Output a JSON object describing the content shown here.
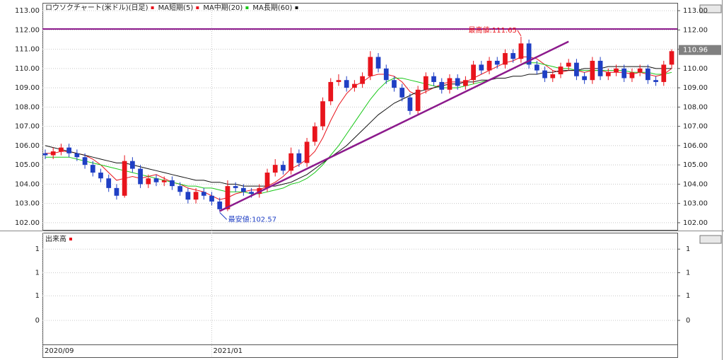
{
  "chart_data": {
    "type": "candlestick",
    "title": "ロウソクチャート(米ドル)(日足)",
    "up_color": "#e8141c",
    "down_color": "#1f3fc4",
    "grid": true,
    "categories": [
      "2020/09",
      null,
      null,
      null,
      null,
      null,
      null,
      null,
      null,
      null,
      null,
      null,
      null,
      null,
      null,
      null,
      null,
      null,
      null,
      null,
      null,
      "2021/01",
      null,
      null,
      null,
      null,
      null,
      null,
      null,
      null,
      null,
      null,
      null,
      null,
      null,
      null,
      null,
      null,
      null,
      null,
      null,
      null,
      null,
      null,
      null,
      null,
      null,
      null,
      null,
      null,
      null,
      null,
      null,
      null,
      null,
      null,
      null,
      null,
      null,
      null,
      null,
      null,
      null,
      null,
      null,
      null,
      null,
      null,
      null,
      null,
      null,
      null,
      null,
      null,
      null,
      null,
      null,
      null,
      null,
      null
    ],
    "open": [
      105.6,
      105.5,
      105.7,
      105.9,
      105.6,
      105.4,
      105.0,
      104.6,
      104.3,
      103.8,
      103.4,
      105.2,
      104.8,
      104.0,
      104.3,
      104.1,
      104.2,
      103.9,
      103.6,
      103.2,
      103.6,
      103.4,
      103.1,
      102.7,
      103.9,
      103.8,
      103.6,
      103.5,
      103.8,
      104.6,
      105.0,
      104.7,
      105.6,
      105.1,
      106.2,
      107.0,
      108.3,
      109.3,
      109.4,
      109.0,
      109.2,
      109.6,
      110.6,
      110.0,
      109.4,
      109.0,
      108.5,
      107.8,
      108.9,
      109.6,
      109.3,
      108.9,
      109.5,
      109.1,
      109.4,
      110.2,
      109.9,
      110.4,
      110.2,
      110.8,
      110.5,
      111.3,
      110.2,
      109.9,
      109.5,
      109.7,
      110.1,
      110.3,
      109.6,
      109.4,
      110.4,
      109.6,
      109.8,
      110.0,
      109.5,
      109.8,
      110.0,
      109.4,
      109.3,
      110.2
    ],
    "high": [
      105.8,
      105.9,
      106.1,
      106.1,
      105.8,
      105.6,
      105.2,
      104.8,
      104.5,
      104.0,
      105.5,
      105.4,
      105.0,
      104.5,
      104.5,
      104.4,
      104.4,
      104.1,
      103.8,
      103.8,
      103.8,
      103.6,
      103.3,
      104.2,
      104.1,
      104.0,
      103.8,
      104.0,
      104.8,
      105.3,
      105.2,
      105.9,
      105.8,
      106.4,
      107.2,
      108.5,
      109.5,
      109.7,
      109.6,
      109.4,
      109.8,
      110.9,
      110.8,
      110.2,
      109.6,
      109.2,
      108.7,
      109.1,
      109.8,
      109.8,
      109.5,
      109.7,
      109.7,
      109.6,
      110.4,
      110.4,
      110.6,
      110.6,
      111.0,
      111.0,
      111.65,
      111.5,
      110.4,
      110.1,
      109.9,
      110.3,
      110.5,
      110.5,
      109.8,
      110.6,
      110.6,
      110.0,
      110.2,
      110.2,
      110.0,
      110.2,
      110.2,
      109.6,
      110.4,
      111.0
    ],
    "low": [
      105.3,
      105.3,
      105.5,
      105.4,
      105.2,
      104.8,
      104.4,
      104.1,
      103.6,
      103.2,
      103.3,
      104.6,
      103.8,
      103.8,
      103.9,
      103.9,
      103.7,
      103.4,
      103.0,
      103.0,
      103.2,
      102.9,
      102.57,
      102.6,
      103.6,
      103.4,
      103.3,
      103.3,
      103.6,
      104.4,
      104.5,
      104.5,
      104.9,
      104.9,
      106.0,
      106.8,
      108.1,
      109.1,
      108.8,
      108.8,
      109.0,
      109.4,
      109.8,
      109.2,
      108.8,
      108.3,
      107.6,
      107.6,
      108.7,
      109.1,
      108.7,
      108.7,
      108.9,
      108.9,
      109.2,
      109.7,
      109.7,
      110.0,
      110.0,
      110.3,
      110.3,
      110.0,
      109.7,
      109.3,
      109.3,
      109.5,
      109.9,
      109.4,
      109.2,
      109.2,
      109.4,
      109.4,
      109.6,
      109.3,
      109.3,
      109.6,
      109.2,
      109.1,
      109.1,
      110.0
    ],
    "close": [
      105.5,
      105.7,
      105.9,
      105.6,
      105.4,
      105.0,
      104.6,
      104.3,
      103.8,
      103.4,
      105.2,
      104.8,
      104.0,
      104.3,
      104.1,
      104.2,
      103.9,
      103.6,
      103.2,
      103.6,
      103.4,
      103.1,
      102.7,
      103.9,
      103.8,
      103.6,
      103.5,
      103.8,
      104.6,
      105.0,
      104.7,
      105.6,
      105.1,
      106.2,
      107.0,
      108.3,
      109.3,
      109.4,
      109.0,
      109.2,
      109.6,
      110.6,
      110.0,
      109.4,
      109.0,
      108.5,
      107.8,
      108.9,
      109.6,
      109.3,
      108.9,
      109.5,
      109.1,
      109.4,
      110.2,
      109.9,
      110.4,
      110.2,
      110.8,
      110.5,
      111.3,
      110.2,
      109.9,
      109.5,
      109.7,
      110.1,
      110.3,
      109.6,
      109.4,
      110.4,
      109.6,
      109.8,
      110.0,
      109.5,
      109.8,
      110.0,
      109.4,
      109.3,
      110.2,
      110.9
    ],
    "series": [
      {
        "name": "MA短期(5)",
        "color": "#e8141c",
        "values": [
          105.6,
          105.6,
          105.7,
          105.7,
          105.6,
          105.5,
          105.3,
          105.0,
          104.6,
          104.2,
          104.3,
          104.4,
          104.3,
          104.4,
          104.5,
          104.3,
          104.1,
          104.0,
          103.8,
          103.7,
          103.6,
          103.4,
          103.2,
          103.3,
          103.5,
          103.6,
          103.7,
          103.7,
          103.9,
          104.1,
          104.4,
          104.8,
          105.0,
          105.3,
          105.7,
          106.4,
          107.3,
          108.1,
          108.7,
          109.1,
          109.3,
          109.6,
          109.7,
          109.7,
          109.6,
          109.3,
          108.8,
          108.6,
          108.8,
          109.0,
          109.2,
          109.3,
          109.3,
          109.3,
          109.5,
          109.7,
          109.9,
          110.1,
          110.3,
          110.4,
          110.6,
          110.6,
          110.5,
          110.2,
          109.9,
          109.8,
          109.9,
          109.9,
          109.8,
          109.9,
          109.9,
          109.8,
          109.8,
          109.8,
          109.7,
          109.8,
          109.7,
          109.6,
          109.7,
          110.0
        ]
      },
      {
        "name": "MA中期(20)",
        "color": "#19c819",
        "values": [
          105.4,
          105.4,
          105.4,
          105.4,
          105.3,
          105.2,
          105.1,
          105.0,
          104.9,
          104.8,
          104.7,
          104.6,
          104.5,
          104.4,
          104.3,
          104.2,
          104.1,
          104.0,
          103.9,
          103.9,
          103.8,
          103.8,
          103.7,
          103.6,
          103.6,
          103.6,
          103.5,
          103.5,
          103.6,
          103.7,
          103.8,
          104.0,
          104.1,
          104.3,
          104.6,
          105.0,
          105.5,
          106.0,
          106.6,
          107.2,
          107.8,
          108.4,
          108.9,
          109.3,
          109.5,
          109.5,
          109.4,
          109.3,
          109.2,
          109.1,
          109.0,
          109.0,
          109.0,
          109.1,
          109.2,
          109.3,
          109.4,
          109.6,
          109.8,
          110.0,
          110.2,
          110.3,
          110.3,
          110.2,
          110.1,
          110.0,
          110.0,
          109.9,
          109.9,
          109.9,
          109.9,
          109.9,
          109.9,
          109.9,
          109.8,
          109.8,
          109.8,
          109.7,
          109.7,
          109.8
        ]
      },
      {
        "name": "MA長期(60)",
        "color": "#111111",
        "values": [
          106.0,
          105.9,
          105.8,
          105.7,
          105.6,
          105.5,
          105.4,
          105.3,
          105.2,
          105.1,
          105.1,
          105.0,
          104.9,
          104.8,
          104.7,
          104.6,
          104.5,
          104.4,
          104.3,
          104.2,
          104.2,
          104.1,
          104.1,
          104.0,
          104.0,
          103.9,
          103.9,
          103.9,
          103.9,
          103.9,
          104.0,
          104.1,
          104.3,
          104.5,
          104.8,
          105.1,
          105.4,
          105.7,
          106.0,
          106.4,
          106.8,
          107.2,
          107.6,
          107.9,
          108.2,
          108.4,
          108.6,
          108.8,
          108.9,
          109.0,
          109.1,
          109.2,
          109.2,
          109.3,
          109.3,
          109.4,
          109.4,
          109.5,
          109.5,
          109.6,
          109.6,
          109.7,
          109.7,
          109.8,
          109.8,
          109.9,
          109.9,
          109.9,
          110.0,
          110.0,
          110.0,
          110.1,
          110.1,
          110.1,
          110.1,
          110.1,
          110.1,
          110.0,
          110.0,
          110.0
        ]
      }
    ],
    "ylim": [
      101.63,
      113.37
    ],
    "yticks": [
      {
        "value": 102,
        "label": "102.00"
      },
      {
        "value": 103,
        "label": "103.00"
      },
      {
        "value": 104,
        "label": "104.00"
      },
      {
        "value": 105,
        "label": "105.00"
      },
      {
        "value": 106,
        "label": "106.00"
      },
      {
        "value": 107,
        "label": "107.00"
      },
      {
        "value": 108,
        "label": "108.00"
      },
      {
        "value": 109,
        "label": "109.00"
      },
      {
        "value": 110,
        "label": "110.00"
      },
      {
        "value": 111,
        "label": "111.00"
      },
      {
        "value": 112,
        "label": "112.00"
      },
      {
        "value": 113,
        "label": "113.00"
      }
    ],
    "hline": {
      "value": 112.05,
      "color": "#8c1a8c"
    },
    "trendline": {
      "x": [
        22,
        66
      ],
      "y": [
        102.6,
        111.4
      ],
      "color": "#8c1a8c"
    },
    "current_price": {
      "value": 110.96,
      "label": "110.96"
    },
    "annotations": [
      {
        "text": "最高値:111.65",
        "index": 60,
        "value": 111.65,
        "color": "#e8141c"
      },
      {
        "text": "最安値:102.57",
        "index": 22,
        "value": 102.57,
        "color": "#1f3fc4"
      }
    ],
    "volume": {
      "title": "出来高",
      "color": "#e8141c",
      "ylim": [
        -0.49,
        1.77
      ],
      "yticks": [
        {
          "value": 1.45,
          "label": "1"
        },
        {
          "value": 0.97,
          "label": "1"
        },
        {
          "value": 0.5,
          "label": "1"
        },
        0
      ]
    }
  }
}
